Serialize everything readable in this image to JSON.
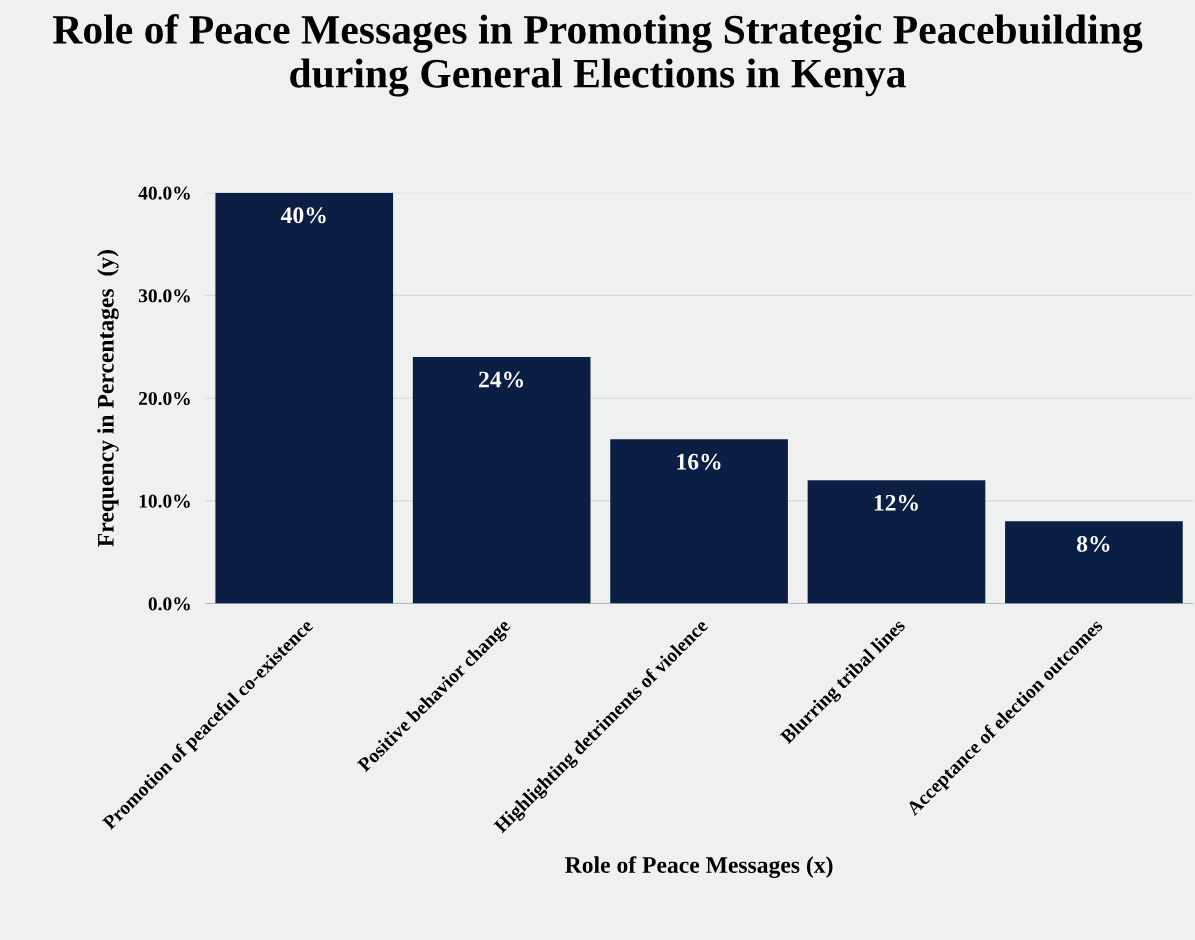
{
  "chart_data": {
    "type": "bar",
    "title": "Role of Peace Messages in Promoting Strategic Peacebuilding during General Elections in Kenya",
    "xlabel": "Role of Peace Messages (x)",
    "ylabel": "Frequency in Percentages  (y)",
    "categories": [
      "Promotion of peaceful co-existence",
      "Positive behavior change",
      "Highlighting detriments of violence",
      "Blurring tribal lines",
      "Acceptance of election outcomes"
    ],
    "values": [
      40,
      24,
      16,
      12,
      8
    ],
    "value_labels": [
      "40%",
      "24%",
      "16%",
      "12%",
      "8%"
    ],
    "color": "#0b1f44",
    "ylim": [
      0,
      40
    ],
    "yticks": [
      {
        "value": 0,
        "label": "0.0%"
      },
      {
        "value": 10,
        "label": "10.0%"
      },
      {
        "value": 20,
        "label": "20.0%"
      },
      {
        "value": 30,
        "label": "30.0%"
      },
      {
        "value": 40,
        "label": "40.0%"
      }
    ],
    "grid": "y",
    "legend": false
  }
}
